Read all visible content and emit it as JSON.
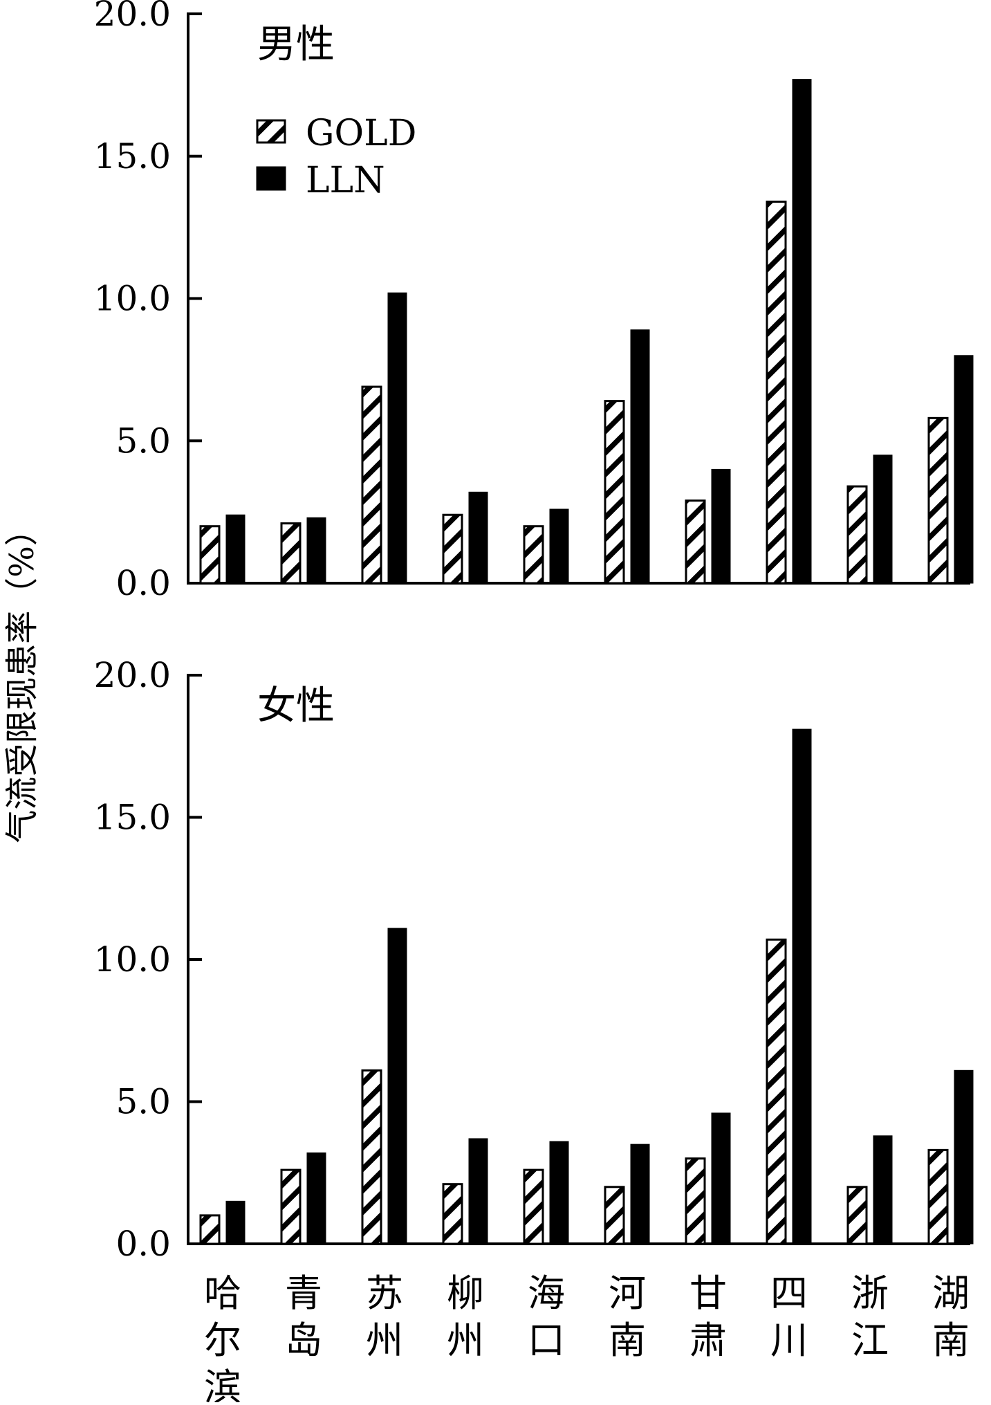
{
  "ylabel": "气流受限现患率（%）",
  "chart_data": [
    {
      "type": "bar",
      "title": "男性",
      "categories": [
        "哈尔滨",
        "青岛",
        "苏州",
        "柳州",
        "海口",
        "河南",
        "甘肃",
        "四川",
        "浙江",
        "湖南"
      ],
      "series": [
        {
          "name": "GOLD",
          "values": [
            2.0,
            2.1,
            6.9,
            2.4,
            2.0,
            6.4,
            2.9,
            13.4,
            3.4,
            5.8
          ],
          "pattern": "hatched"
        },
        {
          "name": "LLN",
          "values": [
            2.4,
            2.3,
            10.2,
            3.2,
            2.6,
            8.9,
            4.0,
            17.7,
            4.5,
            8.0
          ],
          "color": "#000000"
        }
      ],
      "ylim": [
        0,
        20
      ],
      "yticks": [
        "0.0",
        "5.0",
        "10.0",
        "15.0",
        "20.0"
      ],
      "legend": "top-left",
      "grid": false
    },
    {
      "type": "bar",
      "title": "女性",
      "categories": [
        "哈尔滨",
        "青岛",
        "苏州",
        "柳州",
        "海口",
        "河南",
        "甘肃",
        "四川",
        "浙江",
        "湖南"
      ],
      "series": [
        {
          "name": "GOLD",
          "values": [
            1.0,
            2.6,
            6.1,
            2.1,
            2.6,
            2.0,
            3.0,
            10.7,
            2.0,
            3.3
          ],
          "pattern": "hatched"
        },
        {
          "name": "LLN",
          "values": [
            1.5,
            3.2,
            11.1,
            3.7,
            3.6,
            3.5,
            4.6,
            18.1,
            3.8,
            6.1
          ],
          "color": "#000000"
        }
      ],
      "ylim": [
        0,
        20
      ],
      "yticks": [
        "0.0",
        "5.0",
        "10.0",
        "15.0",
        "20.0"
      ],
      "grid": false
    }
  ]
}
